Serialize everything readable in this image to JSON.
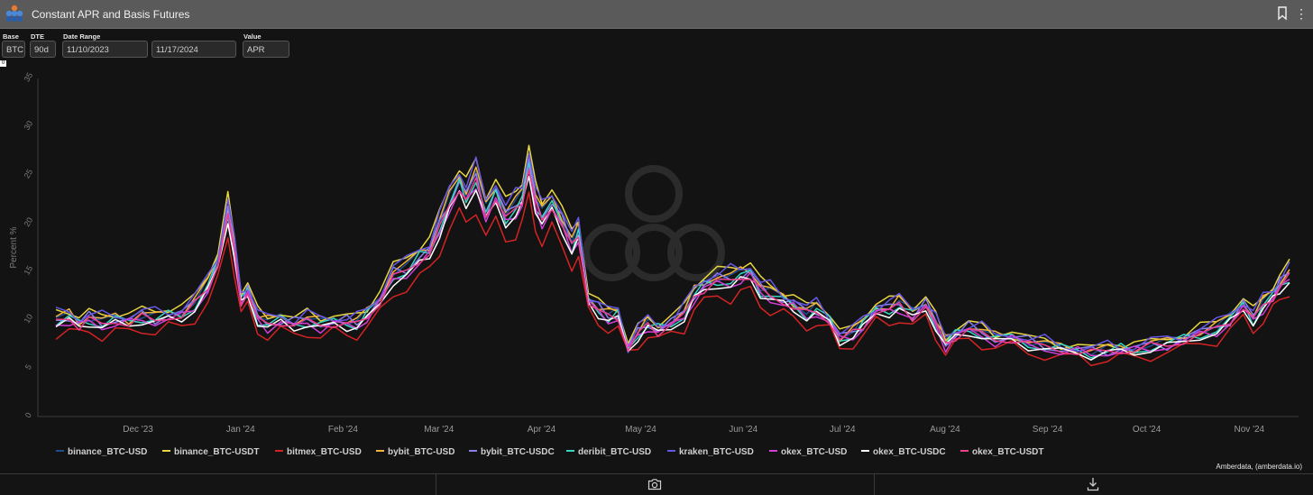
{
  "window": {
    "title": "Constant APR and Basis Futures"
  },
  "controls": {
    "base_label": "Base",
    "base_value": "BTC",
    "dte_label": "DTE",
    "dte_value": "90d",
    "date_label": "Date Range",
    "date_start": "11/10/2023",
    "date_end": "11/17/2024",
    "value_label": "Value",
    "value_value": "APR",
    "small_box": "0"
  },
  "footer": {
    "credit": "Amberdata, (amberdata.io)"
  },
  "chart_data": {
    "type": "line",
    "title": "",
    "ylabel": "Percent %",
    "xlabel": "",
    "ylim": [
      0,
      35
    ],
    "yticks": [
      "0",
      "5",
      "10",
      "15",
      "20",
      "25",
      "30",
      "35"
    ],
    "x_ticks": [
      "Dec '23",
      "Jan '24",
      "Feb '24",
      "Mar '24",
      "Apr '24",
      "May '24",
      "Jun '24",
      "Jul '24",
      "Aug '24",
      "Sep '24",
      "Oct '24",
      "Nov '24"
    ],
    "x_start": "2023-11-10",
    "x_end": "2024-11-17",
    "grid": "off",
    "legend_position": "bottom",
    "base": [
      [
        "2023-11-10",
        9.8
      ],
      [
        "2023-11-14",
        10.2
      ],
      [
        "2023-11-17",
        9.6
      ],
      [
        "2023-11-20",
        10.0
      ],
      [
        "2023-11-24",
        9.5
      ],
      [
        "2023-11-28",
        10.0
      ],
      [
        "2023-12-02",
        9.8
      ],
      [
        "2023-12-06",
        10.2
      ],
      [
        "2023-12-10",
        10.0
      ],
      [
        "2023-12-14",
        10.5
      ],
      [
        "2023-12-18",
        10.4
      ],
      [
        "2023-12-22",
        11.5
      ],
      [
        "2023-12-26",
        13.5
      ],
      [
        "2023-12-29",
        16.0
      ],
      [
        "2024-01-01",
        21.0
      ],
      [
        "2024-01-03",
        17.0
      ],
      [
        "2024-01-05",
        12.0
      ],
      [
        "2024-01-07",
        13.0
      ],
      [
        "2024-01-10",
        10.0
      ],
      [
        "2024-01-13",
        9.5
      ],
      [
        "2024-01-17",
        10.0
      ],
      [
        "2024-01-21",
        9.5
      ],
      [
        "2024-01-25",
        9.8
      ],
      [
        "2024-01-29",
        9.5
      ],
      [
        "2024-02-02",
        9.8
      ],
      [
        "2024-02-06",
        9.6
      ],
      [
        "2024-02-09",
        9.5
      ],
      [
        "2024-02-12",
        10.5
      ],
      [
        "2024-02-16",
        12.0
      ],
      [
        "2024-02-20",
        14.5
      ],
      [
        "2024-02-24",
        15.0
      ],
      [
        "2024-02-28",
        16.5
      ],
      [
        "2024-03-02",
        17.0
      ],
      [
        "2024-03-05",
        19.5
      ],
      [
        "2024-03-08",
        22.0
      ],
      [
        "2024-03-11",
        24.0
      ],
      [
        "2024-03-13",
        22.5
      ],
      [
        "2024-03-16",
        24.5
      ],
      [
        "2024-03-19",
        21.0
      ],
      [
        "2024-03-22",
        23.0
      ],
      [
        "2024-03-25",
        20.5
      ],
      [
        "2024-03-28",
        21.5
      ],
      [
        "2024-03-30",
        22.5
      ],
      [
        "2024-04-01",
        26.0
      ],
      [
        "2024-04-03",
        22.0
      ],
      [
        "2024-04-05",
        20.5
      ],
      [
        "2024-04-08",
        22.0
      ],
      [
        "2024-04-11",
        20.0
      ],
      [
        "2024-04-14",
        17.5
      ],
      [
        "2024-04-16",
        19.0
      ],
      [
        "2024-04-19",
        12.0
      ],
      [
        "2024-04-22",
        11.0
      ],
      [
        "2024-04-25",
        10.2
      ],
      [
        "2024-04-28",
        10.5
      ],
      [
        "2024-05-01",
        7.0
      ],
      [
        "2024-05-04",
        8.5
      ],
      [
        "2024-05-07",
        9.5
      ],
      [
        "2024-05-10",
        9.0
      ],
      [
        "2024-05-14",
        9.5
      ],
      [
        "2024-05-18",
        10.5
      ],
      [
        "2024-05-21",
        12.5
      ],
      [
        "2024-05-24",
        13.5
      ],
      [
        "2024-05-28",
        14.0
      ],
      [
        "2024-06-01",
        14.0
      ],
      [
        "2024-06-04",
        14.5
      ],
      [
        "2024-06-07",
        14.8
      ],
      [
        "2024-06-10",
        13.0
      ],
      [
        "2024-06-13",
        12.5
      ],
      [
        "2024-06-17",
        12.0
      ],
      [
        "2024-06-20",
        11.5
      ],
      [
        "2024-06-24",
        10.5
      ],
      [
        "2024-06-27",
        11.0
      ],
      [
        "2024-07-01",
        10.0
      ],
      [
        "2024-07-04",
        8.0
      ],
      [
        "2024-07-08",
        8.5
      ],
      [
        "2024-07-11",
        9.5
      ],
      [
        "2024-07-15",
        11.0
      ],
      [
        "2024-07-19",
        11.0
      ],
      [
        "2024-07-22",
        11.5
      ],
      [
        "2024-07-26",
        10.5
      ],
      [
        "2024-07-30",
        11.5
      ],
      [
        "2024-08-02",
        9.5
      ],
      [
        "2024-08-05",
        7.5
      ],
      [
        "2024-08-08",
        8.5
      ],
      [
        "2024-08-12",
        9.0
      ],
      [
        "2024-08-16",
        8.5
      ],
      [
        "2024-08-20",
        8.0
      ],
      [
        "2024-08-25",
        8.2
      ],
      [
        "2024-08-30",
        7.5
      ],
      [
        "2024-09-04",
        7.2
      ],
      [
        "2024-09-09",
        7.0
      ],
      [
        "2024-09-14",
        6.8
      ],
      [
        "2024-09-18",
        6.5
      ],
      [
        "2024-09-23",
        6.8
      ],
      [
        "2024-09-27",
        7.0
      ],
      [
        "2024-10-01",
        6.8
      ],
      [
        "2024-10-06",
        7.2
      ],
      [
        "2024-10-11",
        7.5
      ],
      [
        "2024-10-16",
        8.0
      ],
      [
        "2024-10-21",
        8.5
      ],
      [
        "2024-10-26",
        9.0
      ],
      [
        "2024-10-30",
        10.0
      ],
      [
        "2024-11-03",
        11.5
      ],
      [
        "2024-11-06",
        10.0
      ],
      [
        "2024-11-09",
        11.5
      ],
      [
        "2024-11-12",
        12.5
      ],
      [
        "2024-11-14",
        13.5
      ],
      [
        "2024-11-17",
        14.5
      ]
    ],
    "series": [
      {
        "name": "binance_BTC-USD",
        "color": "#1f4e8c",
        "offset": 0.4,
        "wobble": 0.4
      },
      {
        "name": "binance_BTC-USDT",
        "color": "#e8d640",
        "offset": 1.0,
        "wobble": 0.5
      },
      {
        "name": "bitmex_BTC-USD",
        "color": "#d42323",
        "offset": -1.4,
        "wobble": 0.6
      },
      {
        "name": "bybit_BTC-USD",
        "color": "#f2b33d",
        "offset": 0.5,
        "wobble": 0.5
      },
      {
        "name": "bybit_BTC-USDC",
        "color": "#8a80ec",
        "offset": 0.2,
        "wobble": 0.6
      },
      {
        "name": "deribit_BTC-USD",
        "color": "#36d6c3",
        "offset": 0.0,
        "wobble": 0.5
      },
      {
        "name": "kraken_BTC-USD",
        "color": "#6757e5",
        "offset": 0.8,
        "wobble": 0.7
      },
      {
        "name": "okex_BTC-USD",
        "color": "#d23fd8",
        "offset": -0.3,
        "wobble": 0.5
      },
      {
        "name": "okex_BTC-USDC",
        "color": "#ffffff",
        "offset": -0.4,
        "wobble": 0.4
      },
      {
        "name": "okex_BTC-USDT",
        "color": "#ec3f8e",
        "offset": -0.1,
        "wobble": 0.5
      }
    ]
  }
}
